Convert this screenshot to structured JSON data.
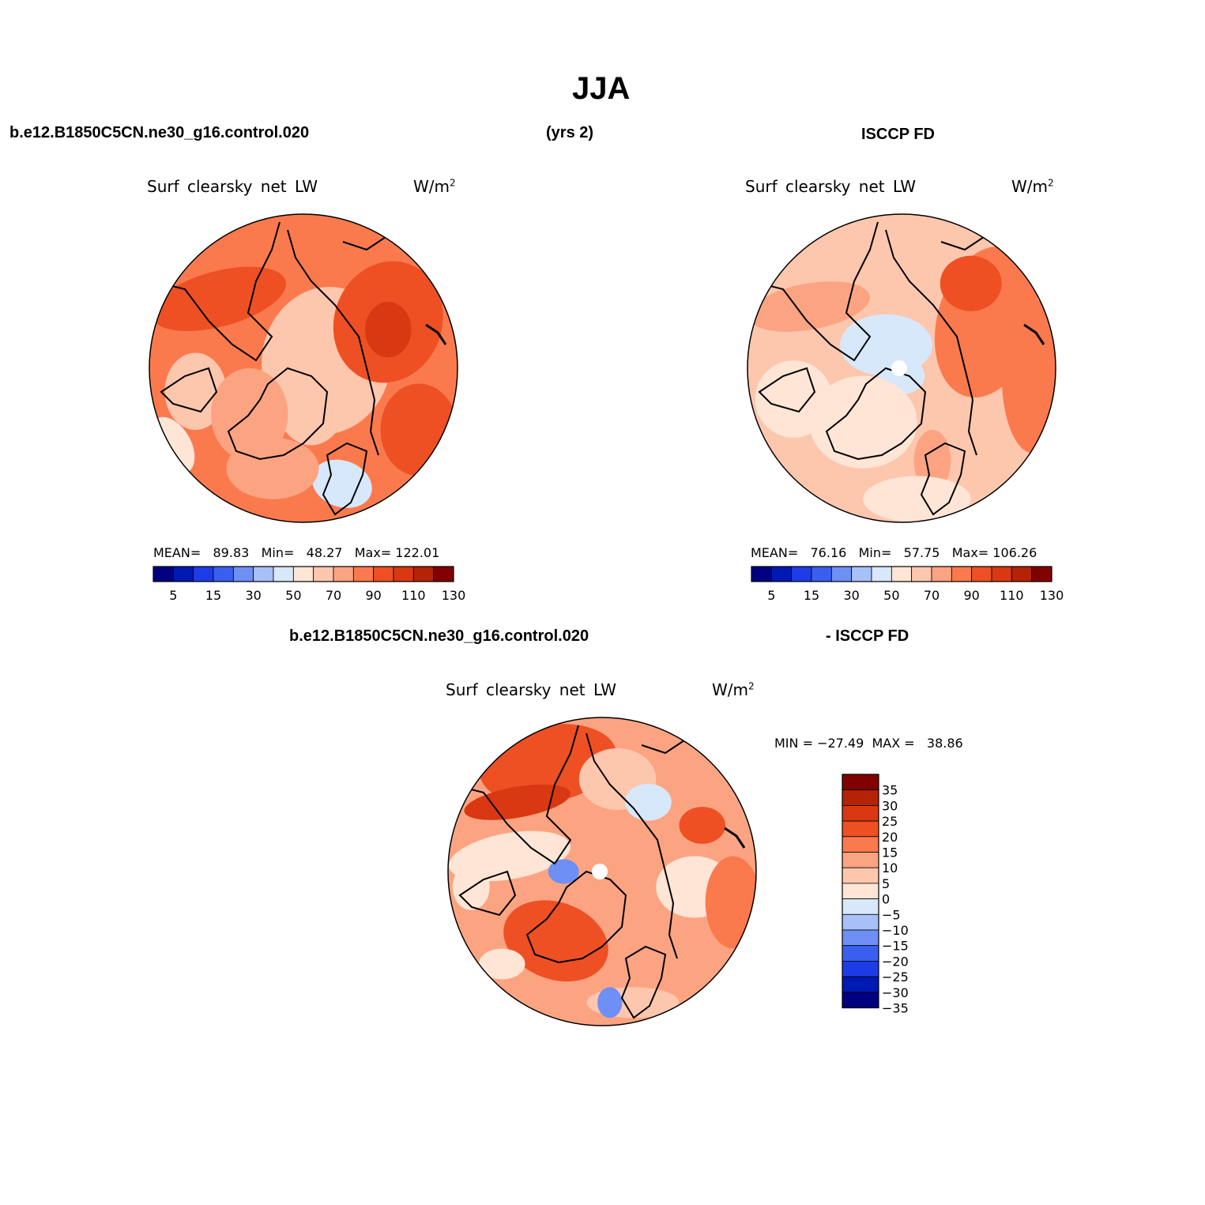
{
  "main_title": "JJA",
  "header": {
    "case_name": "b.e12.B1850C5CN.ne30_g16.control.020",
    "years": "(yrs 2)",
    "obs_name": "ISCCP FD"
  },
  "diff_header": {
    "case_name": "b.e12.B1850C5CN.ne30_g16.control.020",
    "obs_name": "- ISCCP FD"
  },
  "colors": {
    "seq": [
      "#000080",
      "#0019B3",
      "#1E3CE6",
      "#3A5FF0",
      "#6E8FF5",
      "#A7C0F7",
      "#D7E8FB",
      "#FEE5D6",
      "#FDC7AE",
      "#FCA482",
      "#FA7A4E",
      "#EE5024",
      "#D93812",
      "#B42306",
      "#810000"
    ],
    "div": [
      "#000080",
      "#0019B3",
      "#1E3CE6",
      "#3A5FF0",
      "#6E8FF5",
      "#A7C0F7",
      "#D7E8FB",
      "#FEE5D6",
      "#FDC7AE",
      "#FCA482",
      "#FA7A4E",
      "#EE5024",
      "#D93812",
      "#B42306",
      "#810000"
    ],
    "land_outline": "#000000"
  },
  "panels": [
    {
      "id": "model",
      "title": "Surf clearsky net LW",
      "units": "W/m",
      "units_sup": "2",
      "mean_label": "MEAN=",
      "mean": "89.83",
      "min_label": "Min=",
      "min": "48.27",
      "max_label": "Max=",
      "max": "122.01",
      "colorbar_ticks": [
        "5",
        "15",
        "30",
        "50",
        "70",
        "90",
        "110",
        "130"
      ]
    },
    {
      "id": "obs",
      "title": "Surf clearsky net LW",
      "units": "W/m",
      "units_sup": "2",
      "mean_label": "MEAN=",
      "mean": "76.16",
      "min_label": "Min=",
      "min": "57.75",
      "max_label": "Max=",
      "max": "106.26",
      "colorbar_ticks": [
        "5",
        "15",
        "30",
        "50",
        "70",
        "90",
        "110",
        "130"
      ]
    },
    {
      "id": "diff",
      "title": "Surf clearsky net LW",
      "units": "W/m",
      "units_sup": "2",
      "minmax_label": "MIN = −27.49  MAX =   38.86",
      "colorbar_ticks": [
        "35",
        "30",
        "25",
        "20",
        "15",
        "10",
        "5",
        "0",
        "−5",
        "−10",
        "−15",
        "−20",
        "−25",
        "−30",
        "−35"
      ]
    }
  ],
  "chart_data": [
    {
      "type": "heatmap",
      "projection": "north polar stereographic",
      "title": "Surf clearsky net LW",
      "units": "W/m^2",
      "stats": {
        "mean": 89.83,
        "min": 48.27,
        "max": 122.01
      },
      "levels": [
        5,
        10,
        15,
        20,
        30,
        40,
        50,
        60,
        70,
        80,
        90,
        100,
        110,
        120,
        130
      ],
      "colorbar_labels": [
        5,
        15,
        30,
        50,
        70,
        90,
        110,
        130
      ]
    },
    {
      "type": "heatmap",
      "projection": "north polar stereographic",
      "title": "Surf clearsky net LW",
      "units": "W/m^2",
      "stats": {
        "mean": 76.16,
        "min": 57.75,
        "max": 106.26
      },
      "levels": [
        5,
        10,
        15,
        20,
        30,
        40,
        50,
        60,
        70,
        80,
        90,
        100,
        110,
        120,
        130
      ],
      "colorbar_labels": [
        5,
        15,
        30,
        50,
        70,
        90,
        110,
        130
      ]
    },
    {
      "type": "heatmap",
      "projection": "north polar stereographic",
      "title": "Surf clearsky net LW",
      "units": "W/m^2",
      "stats": {
        "min": -27.49,
        "max": 38.86
      },
      "levels": [
        35,
        30,
        25,
        20,
        15,
        10,
        5,
        0,
        -5,
        -10,
        -15,
        -20,
        -25,
        -30,
        -35
      ],
      "colorbar_labels": [
        35,
        30,
        25,
        20,
        15,
        10,
        5,
        0,
        -5,
        -10,
        -15,
        -20,
        -25,
        -30,
        -35
      ]
    }
  ]
}
